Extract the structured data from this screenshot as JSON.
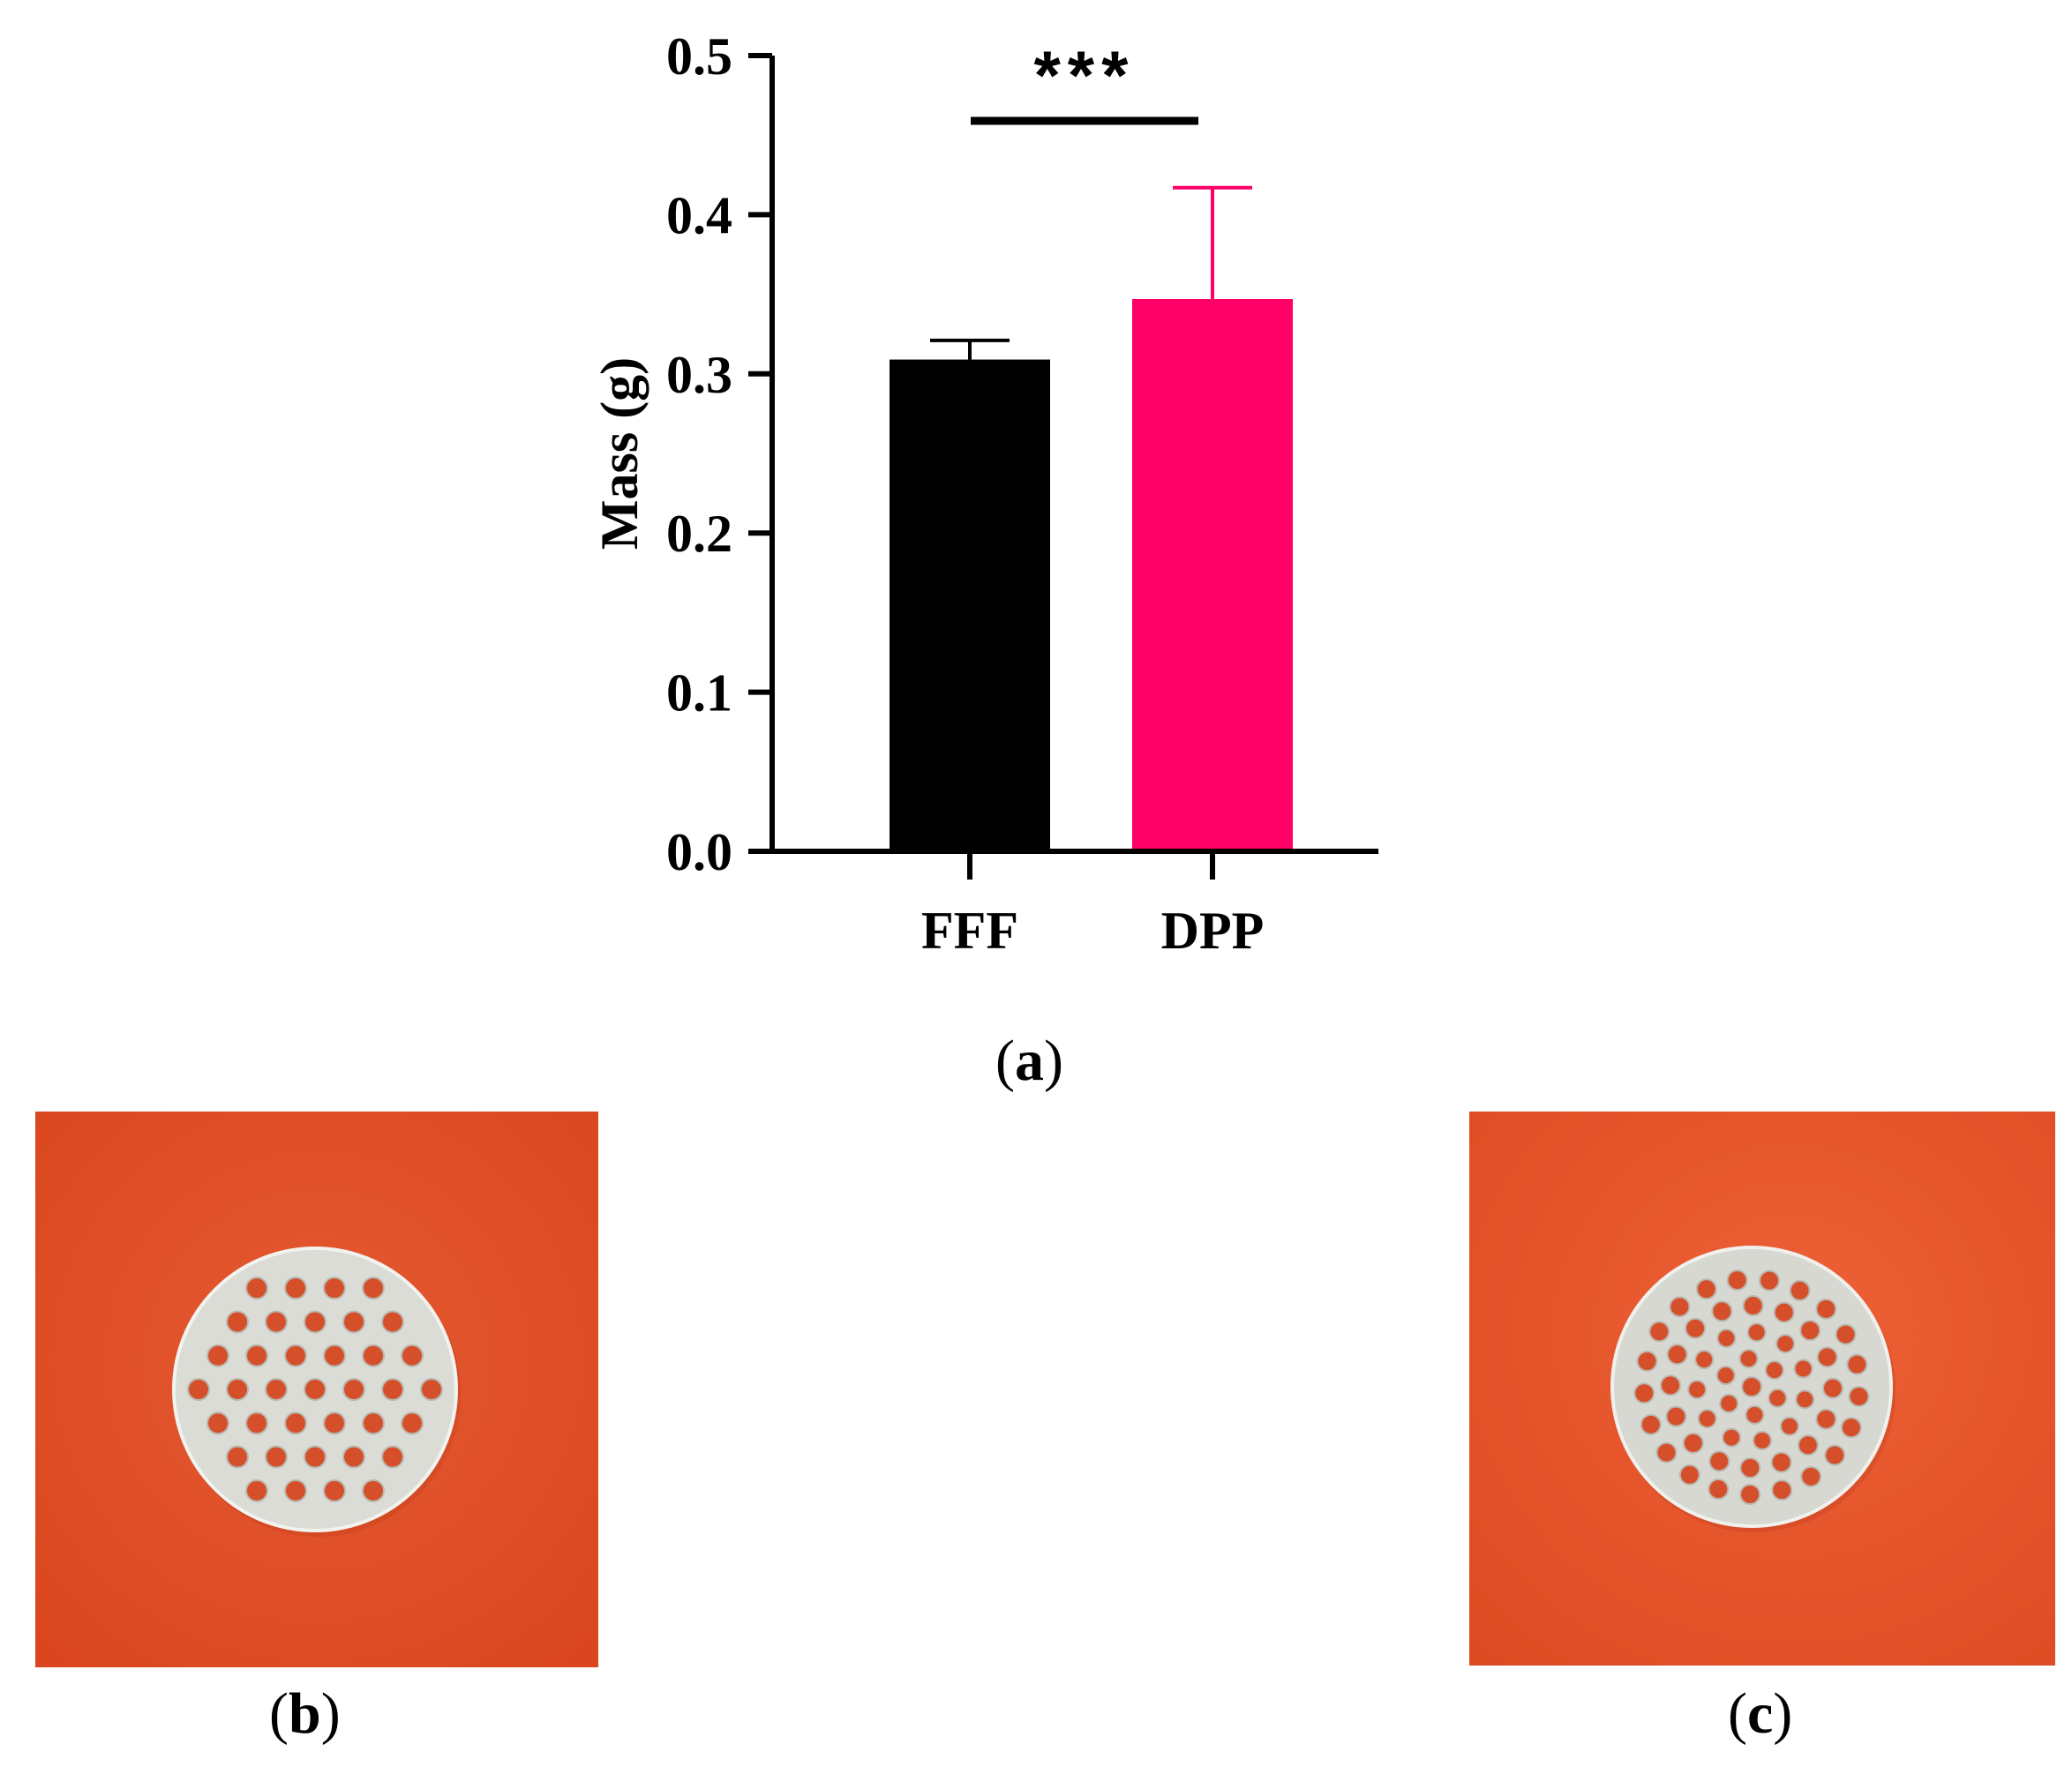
{
  "chart_data": {
    "type": "bar",
    "categories": [
      "FFF",
      "DPP"
    ],
    "values": [
      0.309,
      0.347
    ],
    "errors": [
      0.012,
      0.07
    ],
    "colors": [
      "#000000",
      "#ff0066"
    ],
    "ylabel": "Mass (g)",
    "ylim": [
      0,
      0.5
    ],
    "yticks": [
      "0.0",
      "0.1",
      "0.2",
      "0.3",
      "0.4",
      "0.5"
    ],
    "significance": "***",
    "grid": false
  },
  "panels": {
    "a": "a",
    "b": "b",
    "c": "c"
  },
  "photos": {
    "background_color": "#e4532d",
    "disc_color": "#dcdcd6"
  }
}
